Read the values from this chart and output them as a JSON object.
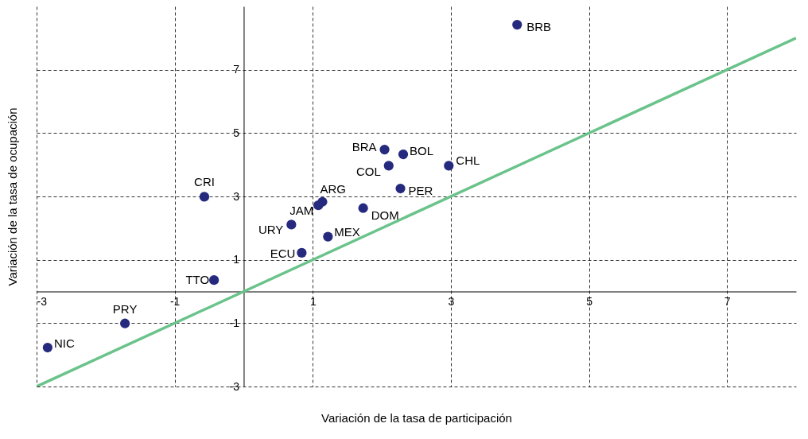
{
  "chart_data": {
    "type": "scatter",
    "xlabel": "Variación de la tasa de participación",
    "ylabel": "Variación de la tasa de ocupación",
    "xlim": [
      -3,
      8
    ],
    "ylim": [
      -3,
      9
    ],
    "xticks": [
      -3,
      -1,
      1,
      3,
      5,
      7
    ],
    "yticks": [
      -3,
      -1,
      1,
      3,
      5,
      7
    ],
    "grid": true,
    "series": [
      {
        "marker": "circle",
        "color": "#262a7e",
        "x": [
          3.96,
          2.04,
          2.31,
          2.1,
          2.97,
          2.27,
          1.14,
          1.08,
          1.73,
          0.69,
          1.22,
          0.84,
          -0.57,
          -0.43,
          -1.72,
          -2.84
        ],
        "values": [
          8.42,
          4.48,
          4.33,
          3.97,
          3.97,
          3.25,
          2.83,
          2.72,
          2.63,
          2.11,
          1.73,
          1.22,
          2.99,
          0.36,
          -1.01,
          -1.77
        ]
      },
      {
        "type": "line",
        "color": "#6ac38a",
        "line_style": "solid",
        "x": [
          -3,
          8
        ],
        "values": [
          -3,
          8
        ]
      }
    ],
    "annotations": [
      {
        "text": "BRB",
        "x": 3.96,
        "y": 8.42
      },
      {
        "text": "BRA",
        "x": 2.04,
        "y": 4.48
      },
      {
        "text": "BOL",
        "x": 2.31,
        "y": 4.33
      },
      {
        "text": "COL",
        "x": 2.1,
        "y": 3.97
      },
      {
        "text": "CHL",
        "x": 2.97,
        "y": 3.97
      },
      {
        "text": "PER",
        "x": 2.27,
        "y": 3.25
      },
      {
        "text": "ARG",
        "x": 1.14,
        "y": 2.83
      },
      {
        "text": "JAM",
        "x": 1.08,
        "y": 2.72
      },
      {
        "text": "DOM",
        "x": 1.73,
        "y": 2.63
      },
      {
        "text": "URY",
        "x": 0.69,
        "y": 2.11
      },
      {
        "text": "MEX",
        "x": 1.22,
        "y": 1.73
      },
      {
        "text": "ECU",
        "x": 0.84,
        "y": 1.22
      },
      {
        "text": "CRI",
        "x": -0.57,
        "y": 2.99
      },
      {
        "text": "TTO",
        "x": -0.43,
        "y": 0.36
      },
      {
        "text": "PRY",
        "x": -1.72,
        "y": -1.01
      },
      {
        "text": "NIC",
        "x": -2.84,
        "y": -1.77
      }
    ]
  }
}
